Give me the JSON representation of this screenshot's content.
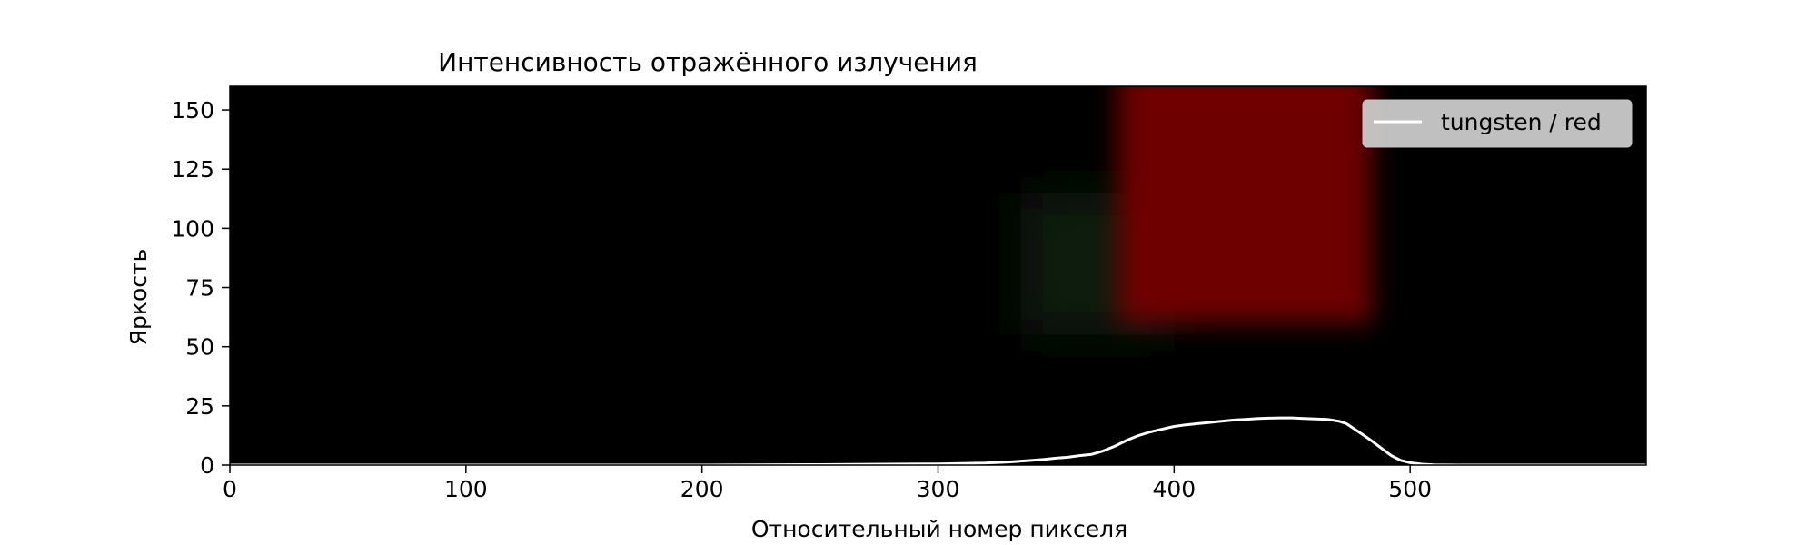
{
  "chart_data": {
    "type": "line",
    "title": "Интенсивность отражённого излучения",
    "xlabel": "Относительный номер пикселя",
    "ylabel": "Яркость",
    "xlim": [
      0,
      600
    ],
    "ylim": [
      0,
      160
    ],
    "x_ticks": [
      0,
      100,
      200,
      300,
      400,
      500
    ],
    "y_ticks": [
      0,
      25,
      50,
      75,
      100,
      125,
      150
    ],
    "background": "image",
    "grid": false,
    "legend_position": "top-right",
    "image_colors": {
      "plot_bg": "#000000",
      "glow": "#6e0000",
      "green_fringe": "#0a1a08",
      "line": "#ffffff",
      "legend_bg": "#d0d0d0"
    },
    "series": [
      {
        "name": "tungsten / red",
        "color": "#ffffff",
        "x": [
          0,
          100,
          200,
          250,
          300,
          320,
          330,
          340,
          345,
          350,
          355,
          360,
          365,
          370,
          375,
          380,
          385,
          390,
          395,
          400,
          405,
          410,
          415,
          420,
          425,
          430,
          435,
          440,
          445,
          450,
          455,
          460,
          465,
          470,
          473,
          476,
          480,
          484,
          488,
          492,
          496,
          500,
          505,
          510,
          520,
          600
        ],
        "values": [
          0,
          0,
          0,
          0.2,
          0.5,
          0.9,
          1.3,
          2.0,
          2.4,
          2.9,
          3.3,
          4.0,
          4.5,
          6.0,
          8.0,
          10.5,
          12.5,
          14.0,
          15.2,
          16.3,
          17.0,
          17.5,
          18.0,
          18.5,
          19.0,
          19.3,
          19.6,
          19.8,
          19.9,
          19.9,
          19.7,
          19.5,
          19.3,
          18.5,
          17.5,
          15.5,
          12.8,
          10.0,
          7.0,
          4.0,
          2.0,
          1.0,
          0.4,
          0.1,
          0,
          0
        ]
      }
    ]
  }
}
